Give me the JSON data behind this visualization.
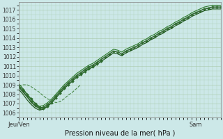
{
  "bg_color": "#cce8e8",
  "grid_color": "#a8c8a8",
  "xlabel": "Pression niveau de la mer( hPa )",
  "xtick_labels": [
    "Jeu/Ven",
    "Sam"
  ],
  "ylim": [
    1005.5,
    1017.8
  ],
  "yticks": [
    1006,
    1007,
    1008,
    1009,
    1010,
    1011,
    1012,
    1013,
    1014,
    1015,
    1016,
    1017
  ],
  "xlim": [
    0,
    49
  ],
  "xtick_positions": [
    0,
    43
  ],
  "n": 50,
  "series": [
    {
      "name": "main_marker",
      "x": [
        0,
        1,
        2,
        3,
        4,
        5,
        6,
        7,
        8,
        9,
        10,
        11,
        12,
        13,
        14,
        15,
        16,
        17,
        18,
        19,
        20,
        21,
        22,
        23,
        24,
        25,
        26,
        27,
        28,
        29,
        30,
        31,
        32,
        33,
        34,
        35,
        36,
        37,
        38,
        39,
        40,
        41,
        42,
        43,
        44,
        45,
        46,
        47,
        48,
        49
      ],
      "y": [
        1008.8,
        1008.3,
        1007.8,
        1007.2,
        1006.8,
        1006.5,
        1006.6,
        1006.9,
        1007.3,
        1007.8,
        1008.3,
        1008.8,
        1009.2,
        1009.6,
        1010.0,
        1010.3,
        1010.6,
        1010.9,
        1011.1,
        1011.4,
        1011.7,
        1012.0,
        1012.3,
        1012.6,
        1012.5,
        1012.3,
        1012.6,
        1012.8,
        1013.0,
        1013.2,
        1013.5,
        1013.7,
        1014.0,
        1014.2,
        1014.5,
        1014.7,
        1015.0,
        1015.2,
        1015.5,
        1015.7,
        1016.0,
        1016.2,
        1016.5,
        1016.7,
        1016.9,
        1017.1,
        1017.2,
        1017.3,
        1017.3,
        1017.3
      ],
      "style": "-",
      "marker": "D",
      "ms": 2.0,
      "lw": 1.0,
      "color": "#2d6a2d"
    },
    {
      "name": "line_solid1",
      "x": [
        0,
        1,
        2,
        3,
        4,
        5,
        6,
        7,
        8,
        9,
        10,
        11,
        12,
        13,
        14,
        15,
        16,
        17,
        18,
        19,
        20,
        21,
        22,
        23,
        24,
        25,
        26,
        27,
        28,
        29,
        30,
        31,
        32,
        33,
        34,
        35,
        36,
        37,
        38,
        39,
        40,
        41,
        42,
        43,
        44,
        45,
        46,
        47,
        48,
        49
      ],
      "y": [
        1008.5,
        1008.0,
        1007.4,
        1006.9,
        1006.5,
        1006.3,
        1006.4,
        1006.7,
        1007.1,
        1007.6,
        1008.1,
        1008.6,
        1009.0,
        1009.4,
        1009.8,
        1010.1,
        1010.4,
        1010.7,
        1010.9,
        1011.2,
        1011.5,
        1011.8,
        1012.1,
        1012.4,
        1012.3,
        1012.1,
        1012.4,
        1012.6,
        1012.8,
        1013.0,
        1013.3,
        1013.5,
        1013.8,
        1014.0,
        1014.3,
        1014.5,
        1014.8,
        1015.0,
        1015.3,
        1015.5,
        1015.8,
        1016.0,
        1016.3,
        1016.5,
        1016.7,
        1016.9,
        1017.0,
        1017.1,
        1017.1,
        1017.1
      ],
      "style": "-",
      "marker": "None",
      "ms": 0,
      "lw": 0.8,
      "color": "#1a5218"
    },
    {
      "name": "line_solid2",
      "x": [
        0,
        1,
        2,
        3,
        4,
        5,
        6,
        7,
        8,
        9,
        10,
        11,
        12,
        13,
        14,
        15,
        16,
        17,
        18,
        19,
        20,
        21,
        22,
        23,
        24,
        25,
        26,
        27,
        28,
        29,
        30,
        31,
        32,
        33,
        34,
        35,
        36,
        37,
        38,
        39,
        40,
        41,
        42,
        43,
        44,
        45,
        46,
        47,
        48,
        49
      ],
      "y": [
        1009.1,
        1008.6,
        1008.0,
        1007.4,
        1007.0,
        1006.7,
        1006.8,
        1007.1,
        1007.5,
        1008.0,
        1008.5,
        1009.0,
        1009.4,
        1009.8,
        1010.2,
        1010.5,
        1010.8,
        1011.1,
        1011.3,
        1011.6,
        1011.9,
        1012.2,
        1012.5,
        1012.8,
        1012.7,
        1012.5,
        1012.8,
        1013.0,
        1013.2,
        1013.4,
        1013.7,
        1013.9,
        1014.2,
        1014.4,
        1014.7,
        1014.9,
        1015.2,
        1015.4,
        1015.7,
        1015.9,
        1016.2,
        1016.4,
        1016.7,
        1016.9,
        1017.1,
        1017.3,
        1017.4,
        1017.5,
        1017.5,
        1017.5
      ],
      "style": "-",
      "marker": "None",
      "ms": 0,
      "lw": 0.8,
      "color": "#2d7a2d"
    },
    {
      "name": "line_solid3",
      "x": [
        0,
        1,
        2,
        3,
        4,
        5,
        6,
        7,
        8,
        9,
        10,
        11,
        12,
        13,
        14,
        15,
        16,
        17,
        18,
        19,
        20,
        21,
        22,
        23,
        24,
        25,
        26,
        27,
        28,
        29,
        30,
        31,
        32,
        33,
        34,
        35,
        36,
        37,
        38,
        39,
        40,
        41,
        42,
        43,
        44,
        45,
        46,
        47,
        48,
        49
      ],
      "y": [
        1008.7,
        1008.2,
        1007.7,
        1007.1,
        1006.7,
        1006.5,
        1006.6,
        1006.9,
        1007.3,
        1007.8,
        1008.3,
        1008.8,
        1009.2,
        1009.6,
        1010.0,
        1010.3,
        1010.6,
        1010.9,
        1011.1,
        1011.4,
        1011.7,
        1012.0,
        1012.3,
        1012.6,
        1012.5,
        1012.3,
        1012.6,
        1012.8,
        1013.0,
        1013.2,
        1013.5,
        1013.7,
        1014.0,
        1014.2,
        1014.5,
        1014.7,
        1015.0,
        1015.2,
        1015.5,
        1015.7,
        1016.0,
        1016.2,
        1016.5,
        1016.7,
        1016.9,
        1017.1,
        1017.2,
        1017.3,
        1017.3,
        1017.3
      ],
      "style": "-",
      "marker": "None",
      "ms": 0,
      "lw": 0.8,
      "color": "#3d6e3d"
    },
    {
      "name": "line_early_dip",
      "x": [
        0,
        1,
        2,
        3,
        4,
        5,
        6,
        7,
        8,
        9,
        10,
        11,
        12,
        13,
        14,
        15
      ],
      "y": [
        1008.9,
        1009.0,
        1009.0,
        1008.8,
        1008.5,
        1008.2,
        1007.8,
        1007.5,
        1007.3,
        1007.1,
        1007.2,
        1007.5,
        1007.9,
        1008.2,
        1008.6,
        1009.0
      ],
      "style": "--",
      "marker": "None",
      "ms": 0,
      "lw": 0.8,
      "color": "#4a8a4a"
    },
    {
      "name": "line_early_solid",
      "x": [
        0,
        1,
        2,
        3,
        4,
        5,
        6,
        7,
        8,
        9,
        10,
        11,
        12,
        13,
        14,
        15,
        16,
        17,
        18,
        19,
        20
      ],
      "y": [
        1008.9,
        1008.5,
        1008.0,
        1007.5,
        1007.0,
        1006.6,
        1006.5,
        1006.7,
        1007.1,
        1007.6,
        1008.1,
        1008.6,
        1009.0,
        1009.4,
        1009.8,
        1010.1,
        1010.4,
        1010.7,
        1010.9,
        1011.2,
        1011.5
      ],
      "style": "-",
      "marker": "D",
      "ms": 2.0,
      "lw": 0.9,
      "color": "#2d6a2d"
    }
  ]
}
